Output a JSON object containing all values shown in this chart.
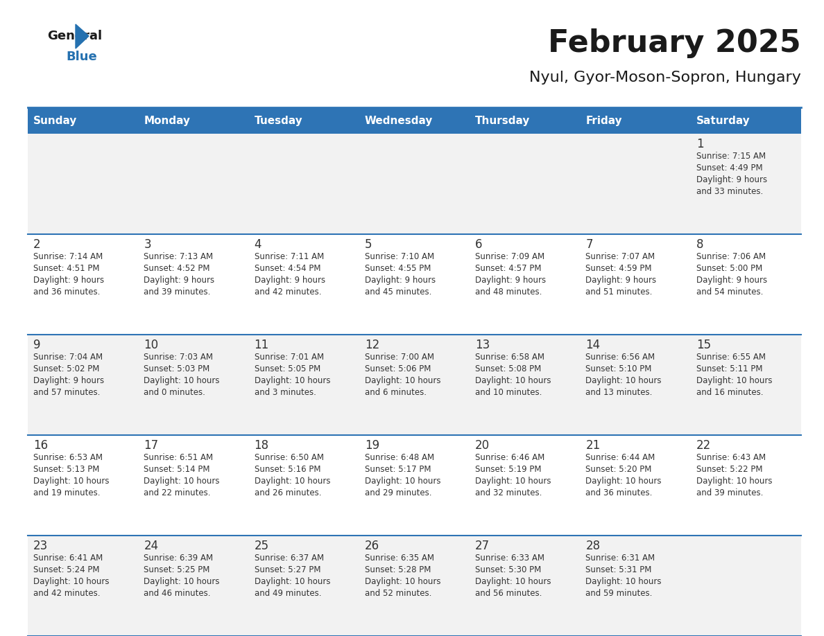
{
  "title": "February 2025",
  "subtitle": "Nyul, Gyor-Moson-Sopron, Hungary",
  "header_bg_color": "#2e74b5",
  "header_text_color": "#ffffff",
  "days_of_week": [
    "Sunday",
    "Monday",
    "Tuesday",
    "Wednesday",
    "Thursday",
    "Friday",
    "Saturday"
  ],
  "row_bg_colors": [
    "#f2f2f2",
    "#ffffff",
    "#f2f2f2",
    "#ffffff",
    "#f2f2f2"
  ],
  "cell_border_color": "#2e74b5",
  "day_number_color": "#333333",
  "info_text_color": "#333333",
  "logo_text_color": "#1a1a1a",
  "logo_blue_color": "#2e74b5",
  "calendar_data": [
    [
      {
        "day": null,
        "sunrise": null,
        "sunset": null,
        "daylight": null
      },
      {
        "day": null,
        "sunrise": null,
        "sunset": null,
        "daylight": null
      },
      {
        "day": null,
        "sunrise": null,
        "sunset": null,
        "daylight": null
      },
      {
        "day": null,
        "sunrise": null,
        "sunset": null,
        "daylight": null
      },
      {
        "day": null,
        "sunrise": null,
        "sunset": null,
        "daylight": null
      },
      {
        "day": null,
        "sunrise": null,
        "sunset": null,
        "daylight": null
      },
      {
        "day": 1,
        "sunrise": "7:15 AM",
        "sunset": "4:49 PM",
        "daylight": "9 hours\nand 33 minutes."
      }
    ],
    [
      {
        "day": 2,
        "sunrise": "7:14 AM",
        "sunset": "4:51 PM",
        "daylight": "9 hours\nand 36 minutes."
      },
      {
        "day": 3,
        "sunrise": "7:13 AM",
        "sunset": "4:52 PM",
        "daylight": "9 hours\nand 39 minutes."
      },
      {
        "day": 4,
        "sunrise": "7:11 AM",
        "sunset": "4:54 PM",
        "daylight": "9 hours\nand 42 minutes."
      },
      {
        "day": 5,
        "sunrise": "7:10 AM",
        "sunset": "4:55 PM",
        "daylight": "9 hours\nand 45 minutes."
      },
      {
        "day": 6,
        "sunrise": "7:09 AM",
        "sunset": "4:57 PM",
        "daylight": "9 hours\nand 48 minutes."
      },
      {
        "day": 7,
        "sunrise": "7:07 AM",
        "sunset": "4:59 PM",
        "daylight": "9 hours\nand 51 minutes."
      },
      {
        "day": 8,
        "sunrise": "7:06 AM",
        "sunset": "5:00 PM",
        "daylight": "9 hours\nand 54 minutes."
      }
    ],
    [
      {
        "day": 9,
        "sunrise": "7:04 AM",
        "sunset": "5:02 PM",
        "daylight": "9 hours\nand 57 minutes."
      },
      {
        "day": 10,
        "sunrise": "7:03 AM",
        "sunset": "5:03 PM",
        "daylight": "10 hours\nand 0 minutes."
      },
      {
        "day": 11,
        "sunrise": "7:01 AM",
        "sunset": "5:05 PM",
        "daylight": "10 hours\nand 3 minutes."
      },
      {
        "day": 12,
        "sunrise": "7:00 AM",
        "sunset": "5:06 PM",
        "daylight": "10 hours\nand 6 minutes."
      },
      {
        "day": 13,
        "sunrise": "6:58 AM",
        "sunset": "5:08 PM",
        "daylight": "10 hours\nand 10 minutes."
      },
      {
        "day": 14,
        "sunrise": "6:56 AM",
        "sunset": "5:10 PM",
        "daylight": "10 hours\nand 13 minutes."
      },
      {
        "day": 15,
        "sunrise": "6:55 AM",
        "sunset": "5:11 PM",
        "daylight": "10 hours\nand 16 minutes."
      }
    ],
    [
      {
        "day": 16,
        "sunrise": "6:53 AM",
        "sunset": "5:13 PM",
        "daylight": "10 hours\nand 19 minutes."
      },
      {
        "day": 17,
        "sunrise": "6:51 AM",
        "sunset": "5:14 PM",
        "daylight": "10 hours\nand 22 minutes."
      },
      {
        "day": 18,
        "sunrise": "6:50 AM",
        "sunset": "5:16 PM",
        "daylight": "10 hours\nand 26 minutes."
      },
      {
        "day": 19,
        "sunrise": "6:48 AM",
        "sunset": "5:17 PM",
        "daylight": "10 hours\nand 29 minutes."
      },
      {
        "day": 20,
        "sunrise": "6:46 AM",
        "sunset": "5:19 PM",
        "daylight": "10 hours\nand 32 minutes."
      },
      {
        "day": 21,
        "sunrise": "6:44 AM",
        "sunset": "5:20 PM",
        "daylight": "10 hours\nand 36 minutes."
      },
      {
        "day": 22,
        "sunrise": "6:43 AM",
        "sunset": "5:22 PM",
        "daylight": "10 hours\nand 39 minutes."
      }
    ],
    [
      {
        "day": 23,
        "sunrise": "6:41 AM",
        "sunset": "5:24 PM",
        "daylight": "10 hours\nand 42 minutes."
      },
      {
        "day": 24,
        "sunrise": "6:39 AM",
        "sunset": "5:25 PM",
        "daylight": "10 hours\nand 46 minutes."
      },
      {
        "day": 25,
        "sunrise": "6:37 AM",
        "sunset": "5:27 PM",
        "daylight": "10 hours\nand 49 minutes."
      },
      {
        "day": 26,
        "sunrise": "6:35 AM",
        "sunset": "5:28 PM",
        "daylight": "10 hours\nand 52 minutes."
      },
      {
        "day": 27,
        "sunrise": "6:33 AM",
        "sunset": "5:30 PM",
        "daylight": "10 hours\nand 56 minutes."
      },
      {
        "day": 28,
        "sunrise": "6:31 AM",
        "sunset": "5:31 PM",
        "daylight": "10 hours\nand 59 minutes."
      },
      {
        "day": null,
        "sunrise": null,
        "sunset": null,
        "daylight": null
      }
    ]
  ]
}
